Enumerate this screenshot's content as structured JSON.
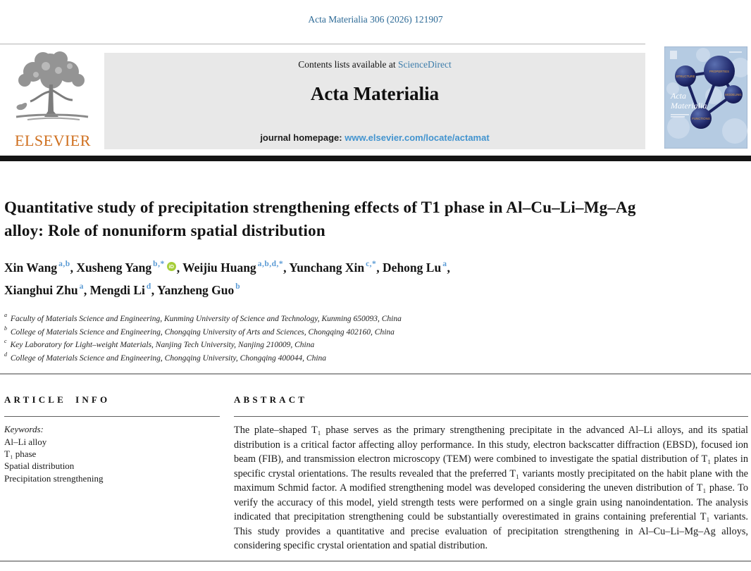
{
  "page": {
    "citation": "Acta Materialia 306 (2026) 121907"
  },
  "header": {
    "contents_prefix": "Contents lists available at ",
    "sciencedirect_link": "ScienceDirect",
    "journal_name": "Acta Materialia",
    "homepage_prefix": "journal homepage: ",
    "homepage_link": "www.elsevier.com/locate/actamat",
    "publisher": "ELSEVIER",
    "cover": {
      "journal_name_line1": "Acta",
      "journal_name_line2": "Materialia",
      "labels": [
        "STRUCTURE",
        "PROPERTIES",
        "MODELING",
        "FUNCTIONS"
      ]
    }
  },
  "article": {
    "title": "Quantitative study of precipitation strengthening effects of T1 phase in Al–Cu–Li–Mg–Ag alloy: Role of nonuniform spatial distribution",
    "authors": [
      {
        "name": "Xin Wang",
        "sup": "a,b",
        "orcid": false
      },
      {
        "name": "Xusheng Yang",
        "sup": "b,*",
        "orcid": true
      },
      {
        "name": "Weijiu Huang",
        "sup": "a,b,d,*",
        "orcid": false
      },
      {
        "name": "Yunchang Xin",
        "sup": "c,*",
        "orcid": false
      },
      {
        "name": "Dehong Lu",
        "sup": "a",
        "orcid": false,
        "break_after": true
      },
      {
        "name": "Xianghui Zhu",
        "sup": "a",
        "orcid": false
      },
      {
        "name": "Mengdi Li",
        "sup": "d",
        "orcid": false
      },
      {
        "name": "Yanzheng Guo",
        "sup": "b",
        "orcid": false
      }
    ],
    "affiliations": [
      {
        "sup": "a",
        "text": "Faculty of Materials Science and Engineering, Kunming University of Science and Technology, Kunming 650093, China"
      },
      {
        "sup": "b",
        "text": "College of Materials Science and Engineering, Chongqing University of Arts and Sciences, Chongqing 402160, China"
      },
      {
        "sup": "c",
        "text": "Key Laboratory for Light–weight Materials, Nanjing Tech University, Nanjing 210009, China"
      },
      {
        "sup": "d",
        "text": "College of Materials Science and Engineering, Chongqing University, Chongqing 400044, China"
      }
    ]
  },
  "article_info": {
    "heading": "ARTICLE INFO",
    "keywords_label": "Keywords:",
    "keywords": [
      "Al–Li alloy",
      "T₁ phase",
      "Spatial distribution",
      "Precipitation strengthening"
    ]
  },
  "abstract": {
    "heading": "ABSTRACT",
    "text": "The plate–shaped T₁ phase serves as the primary strengthening precipitate in the advanced Al–Li alloys, and its spatial distribution is a critical factor affecting alloy performance. In this study, electron backscatter diffraction (EBSD), focused ion beam (FIB), and transmission electron microscopy (TEM) were combined to investigate the spatial distribution of T₁ plates in specific crystal orientations. The results revealed that the preferred T₁ variants mostly precipitated on the habit plane with the maximum Schmid factor. A modified strengthening model was developed considering the uneven distribution of T₁ phase. To verify the accuracy of this model, yield strength tests were performed on a single grain using nanoindentation. The analysis indicated that precipitation strengthening could be substantially overestimated in grains containing preferential T₁ variants. This study provides a quantitative and precise evaluation of precipitation strengthening in Al–Cu–Li–Mg–Ag alloys, considering specific crystal orientation and spatial distribution."
  },
  "colors": {
    "citation_blue": "#2d6a96",
    "link_blue": "#3d7dab",
    "homepage_link_blue": "#4394cf",
    "superscript_blue": "#5b9bd5",
    "elsevier_orange": "#cf6f1e",
    "orcid_green": "#a6ce39",
    "banner_gray": "#e8e8e8",
    "cover_blue": "#b5cbe2",
    "cover_navy": "#1a2260"
  }
}
